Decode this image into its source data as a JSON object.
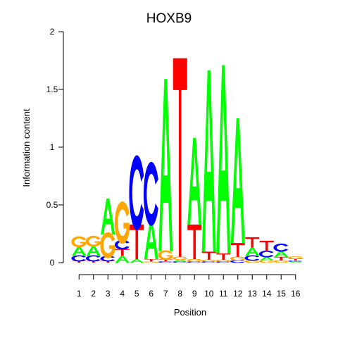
{
  "chart_data": {
    "type": "sequence-logo",
    "title": "HOXB9",
    "xlabel": "Position",
    "ylabel": "Information content",
    "ylim": [
      0,
      2
    ],
    "y_ticks": [
      "0",
      "0.5",
      "1",
      "1.5",
      "2"
    ],
    "x_ticks": [
      "1",
      "2",
      "3",
      "4",
      "5",
      "6",
      "7",
      "8",
      "9",
      "10",
      "11",
      "12",
      "13",
      "14",
      "15",
      "16"
    ],
    "colors": {
      "A": "#00ff00",
      "C": "#0000ff",
      "G": "#ffa500",
      "T": "#ff0000"
    },
    "positions": [
      {
        "position": 1,
        "letters": [
          {
            "base": "T",
            "height": 0.015
          },
          {
            "base": "C",
            "height": 0.045
          },
          {
            "base": "A",
            "height": 0.08
          },
          {
            "base": "G",
            "height": 0.08
          }
        ]
      },
      {
        "position": 2,
        "letters": [
          {
            "base": "T",
            "height": 0.015
          },
          {
            "base": "C",
            "height": 0.045
          },
          {
            "base": "A",
            "height": 0.085
          },
          {
            "base": "G",
            "height": 0.08
          }
        ]
      },
      {
        "position": 3,
        "letters": [
          {
            "base": "T",
            "height": 0.015
          },
          {
            "base": "C",
            "height": 0.04
          },
          {
            "base": "G",
            "height": 0.19
          },
          {
            "base": "A",
            "height": 0.31
          }
        ]
      },
      {
        "position": 4,
        "letters": [
          {
            "base": "A",
            "height": 0.06
          },
          {
            "base": "T",
            "height": 0.06
          },
          {
            "base": "C",
            "height": 0.07
          },
          {
            "base": "G",
            "height": 0.31
          }
        ]
      },
      {
        "position": 5,
        "letters": [
          {
            "base": "A",
            "height": 0.03
          },
          {
            "base": "T",
            "height": 0.3
          },
          {
            "base": "C",
            "height": 0.55
          }
        ]
      },
      {
        "position": 6,
        "letters": [
          {
            "base": "G",
            "height": 0.01
          },
          {
            "base": "T",
            "height": 0.02
          },
          {
            "base": "A",
            "height": 0.33
          },
          {
            "base": "C",
            "height": 0.47
          }
        ]
      },
      {
        "position": 7,
        "letters": [
          {
            "base": "C",
            "height": 0.01
          },
          {
            "base": "T",
            "height": 0.02
          },
          {
            "base": "G",
            "height": 0.07
          },
          {
            "base": "A",
            "height": 1.49
          }
        ]
      },
      {
        "position": 8,
        "letters": [
          {
            "base": "C",
            "height": 0.01
          },
          {
            "base": "A",
            "height": 0.015
          },
          {
            "base": "G",
            "height": 0.025
          },
          {
            "base": "T",
            "height": 1.72
          }
        ]
      },
      {
        "position": 9,
        "letters": [
          {
            "base": "C",
            "height": 0.01
          },
          {
            "base": "G",
            "height": 0.02
          },
          {
            "base": "T",
            "height": 0.3
          },
          {
            "base": "A",
            "height": 0.75
          }
        ]
      },
      {
        "position": 10,
        "letters": [
          {
            "base": "C",
            "height": 0.01
          },
          {
            "base": "G",
            "height": 0.015
          },
          {
            "base": "T",
            "height": 0.07
          },
          {
            "base": "A",
            "height": 1.57
          }
        ]
      },
      {
        "position": 11,
        "letters": [
          {
            "base": "C",
            "height": 0.01
          },
          {
            "base": "G",
            "height": 0.015
          },
          {
            "base": "T",
            "height": 0.055
          },
          {
            "base": "A",
            "height": 1.63
          }
        ]
      },
      {
        "position": 12,
        "letters": [
          {
            "base": "C",
            "height": 0.02
          },
          {
            "base": "G",
            "height": 0.03
          },
          {
            "base": "T",
            "height": 0.12
          },
          {
            "base": "A",
            "height": 1.08
          }
        ]
      },
      {
        "position": 13,
        "letters": [
          {
            "base": "G",
            "height": 0.02
          },
          {
            "base": "C",
            "height": 0.04
          },
          {
            "base": "A",
            "height": 0.07
          },
          {
            "base": "T",
            "height": 0.09
          }
        ]
      },
      {
        "position": 14,
        "letters": [
          {
            "base": "G",
            "height": 0.02
          },
          {
            "base": "A",
            "height": 0.03
          },
          {
            "base": "C",
            "height": 0.05
          },
          {
            "base": "T",
            "height": 0.09
          }
        ]
      },
      {
        "position": 15,
        "letters": [
          {
            "base": "G",
            "height": 0.02
          },
          {
            "base": "T",
            "height": 0.03
          },
          {
            "base": "A",
            "height": 0.05
          },
          {
            "base": "C",
            "height": 0.06
          }
        ]
      },
      {
        "position": 16,
        "letters": [
          {
            "base": "A",
            "height": 0.008
          },
          {
            "base": "C",
            "height": 0.01
          },
          {
            "base": "T",
            "height": 0.015
          },
          {
            "base": "G",
            "height": 0.02
          }
        ]
      }
    ]
  }
}
